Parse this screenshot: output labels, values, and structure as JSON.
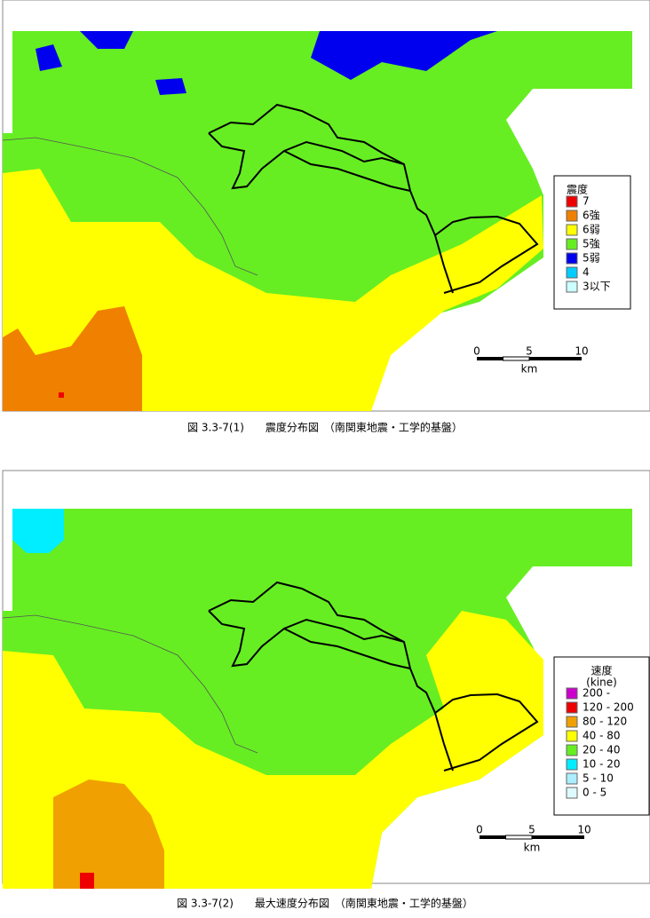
{
  "figures": [
    {
      "caption": "図 3.3-7(1)　　震度分布図　（南関東地震・工学的基盤）",
      "legend": {
        "title": "震度",
        "items": [
          {
            "label": "7",
            "color": "#ee0000"
          },
          {
            "label": "6強",
            "color": "#f08000"
          },
          {
            "label": "6弱",
            "color": "#ffff00"
          },
          {
            "label": "5強",
            "color": "#66ee22"
          },
          {
            "label": "5弱",
            "color": "#0000ee"
          },
          {
            "label": "4",
            "color": "#00ccff"
          },
          {
            "label": "3以下",
            "color": "#ccffff"
          }
        ]
      },
      "scale": {
        "ticks": [
          "0",
          "5",
          "10"
        ],
        "unit": "km"
      }
    },
    {
      "caption": "図 3.3-7(2)　　最大速度分布図　（南関東地震・工学的基盤）",
      "legend": {
        "title": "速度",
        "subtitle": "(kine)",
        "items": [
          {
            "label": "200 -",
            "color": "#cc00cc"
          },
          {
            "label": "120 - 200",
            "color": "#ee0000"
          },
          {
            "label": "80 - 120",
            "color": "#f0a000"
          },
          {
            "label": "40 - 80",
            "color": "#ffff00"
          },
          {
            "label": "20 - 40",
            "color": "#66ee22"
          },
          {
            "label": "10 - 20",
            "color": "#00eeff"
          },
          {
            "label": "5 - 10",
            "color": "#aaeeff"
          },
          {
            "label": "0 - 5",
            "color": "#ddfaff"
          }
        ]
      },
      "scale": {
        "ticks": [
          "0",
          "5",
          "10"
        ],
        "unit": "km"
      }
    }
  ]
}
